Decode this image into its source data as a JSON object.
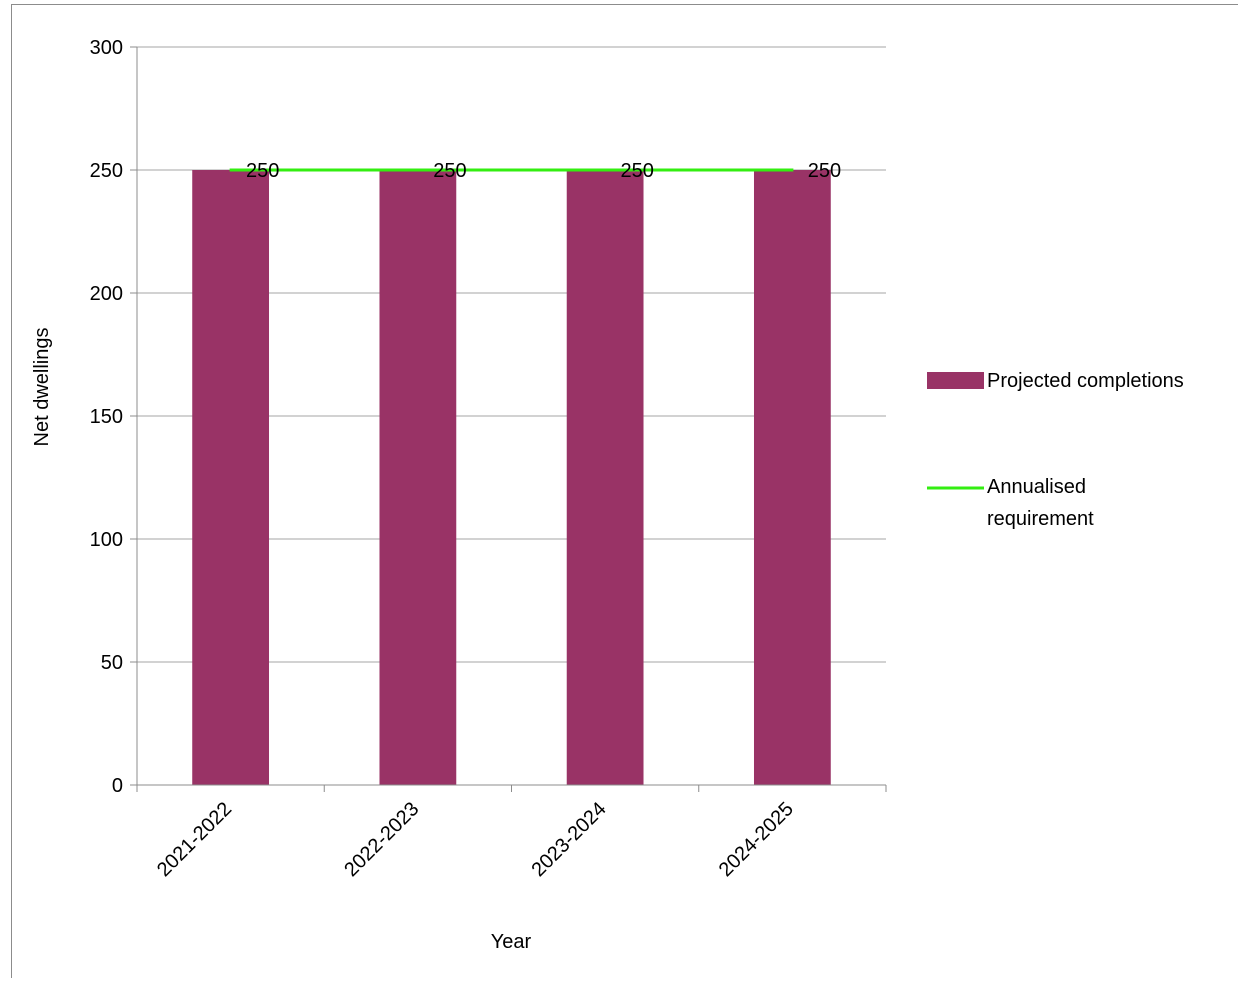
{
  "colors": {
    "bar": "#993366",
    "line": "#33ee11",
    "grid": "#a6a6a6",
    "axis": "#8c8c8c",
    "frame": "#8c8c8c"
  },
  "chart_data": {
    "type": "bar",
    "title": "",
    "xlabel": "Year",
    "ylabel": "Net dwellings",
    "categories": [
      "2021-2022",
      "2022-2023",
      "2023-2024",
      "2024-2025"
    ],
    "ylim": [
      0,
      300
    ],
    "yticks": [
      0,
      50,
      100,
      150,
      200,
      250,
      300
    ],
    "grid": true,
    "legend_position": "right",
    "series": [
      {
        "name": "Projected completions",
        "type": "bar",
        "values": [
          250,
          250,
          250,
          250
        ],
        "data_labels": [
          "250",
          "250",
          "250",
          "250"
        ]
      },
      {
        "name": "Annualised requirement",
        "name_lines": [
          "Annualised",
          "requirement"
        ],
        "type": "line",
        "values": [
          250,
          250,
          250,
          250
        ]
      }
    ]
  }
}
